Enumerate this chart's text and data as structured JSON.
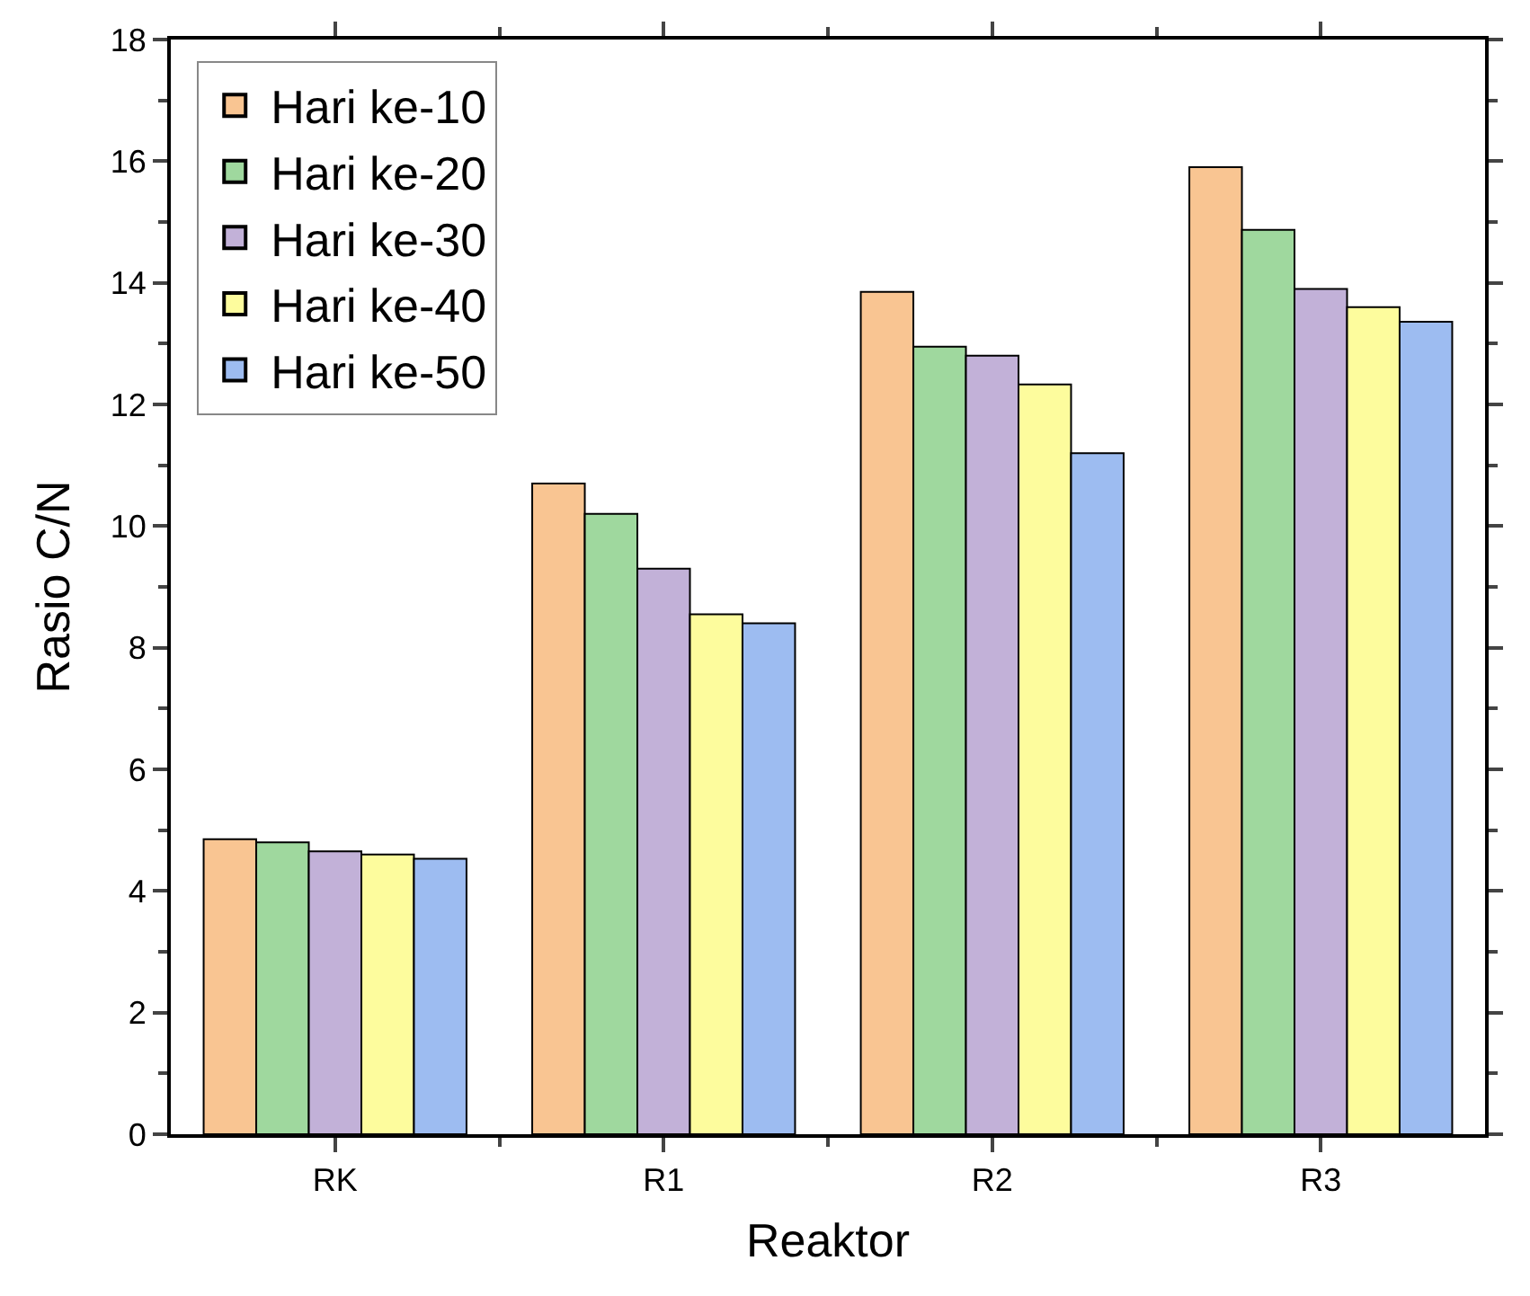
{
  "chart_data": {
    "type": "bar",
    "xlabel": "Reaktor",
    "ylabel": "Rasio C/N",
    "categories": [
      "RK",
      "R1",
      "R2",
      "R3"
    ],
    "series": [
      {
        "name": "Hari ke-10",
        "color": "#f9c592",
        "values": [
          4.85,
          10.7,
          13.85,
          15.9
        ]
      },
      {
        "name": "Hari ke-20",
        "color": "#9fd89e",
        "values": [
          4.8,
          10.2,
          12.95,
          14.87
        ]
      },
      {
        "name": "Hari ke-30",
        "color": "#c2b1d8",
        "values": [
          4.65,
          9.3,
          12.8,
          13.9
        ]
      },
      {
        "name": "Hari ke-40",
        "color": "#fdfc9d",
        "values": [
          4.6,
          8.55,
          12.33,
          13.6
        ]
      },
      {
        "name": "Hari ke-50",
        "color": "#9dbcf1",
        "values": [
          4.53,
          8.4,
          11.2,
          13.36
        ]
      }
    ],
    "ylim": [
      0,
      18
    ],
    "yticks": [
      0,
      2,
      4,
      6,
      8,
      10,
      12,
      14,
      16,
      18
    ],
    "legend": "top left"
  }
}
